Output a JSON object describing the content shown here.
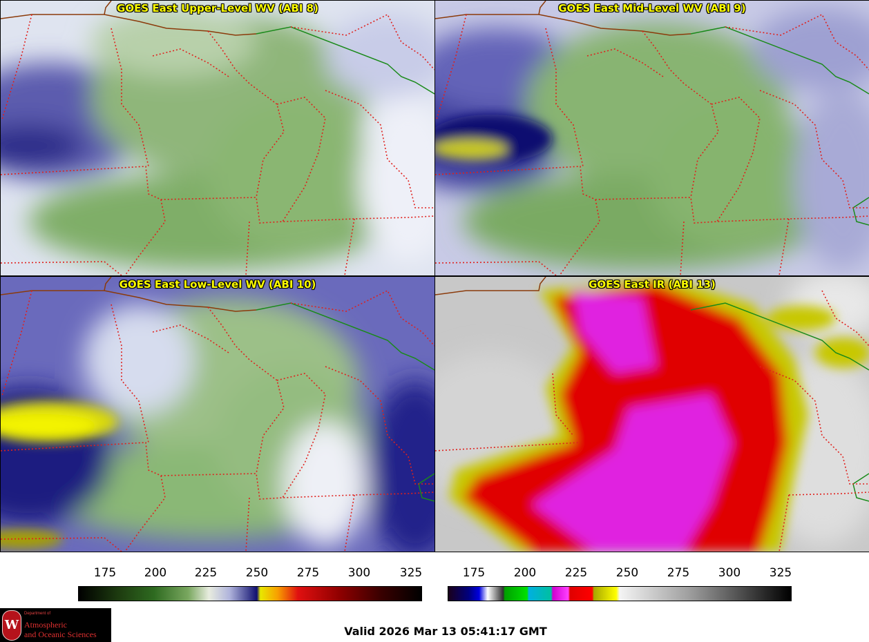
{
  "panels": [
    {
      "title": "GOES East Upper-Level WV (ABI 8)",
      "colormap": "wv"
    },
    {
      "title": "GOES East Mid-Level WV (ABI 9)",
      "colormap": "wv"
    },
    {
      "title": "GOES East Low-Level WV (ABI 10)",
      "colormap": "wv"
    },
    {
      "title": "GOES East IR (ABI 13)",
      "colormap": "ir"
    }
  ],
  "colorbars": {
    "wv": {
      "ticks": [
        "175",
        "200",
        "225",
        "250",
        "275",
        "300",
        "325"
      ],
      "min": 160,
      "max": 330
    },
    "ir": {
      "ticks": [
        "175",
        "200",
        "225",
        "250",
        "275",
        "300",
        "325"
      ],
      "min": 160,
      "max": 330
    }
  },
  "colors": {
    "state_border": "#e0201c",
    "country_border": "#1a8a1a",
    "title_text": "#ffff00"
  },
  "logo": {
    "crest_letter": "W",
    "line1": "Department of",
    "line2": "Atmospheric",
    "line3": "and Oceanic Sciences"
  },
  "footer": {
    "valid": "Valid 2026 Mar 13 05:41:17 GMT"
  }
}
